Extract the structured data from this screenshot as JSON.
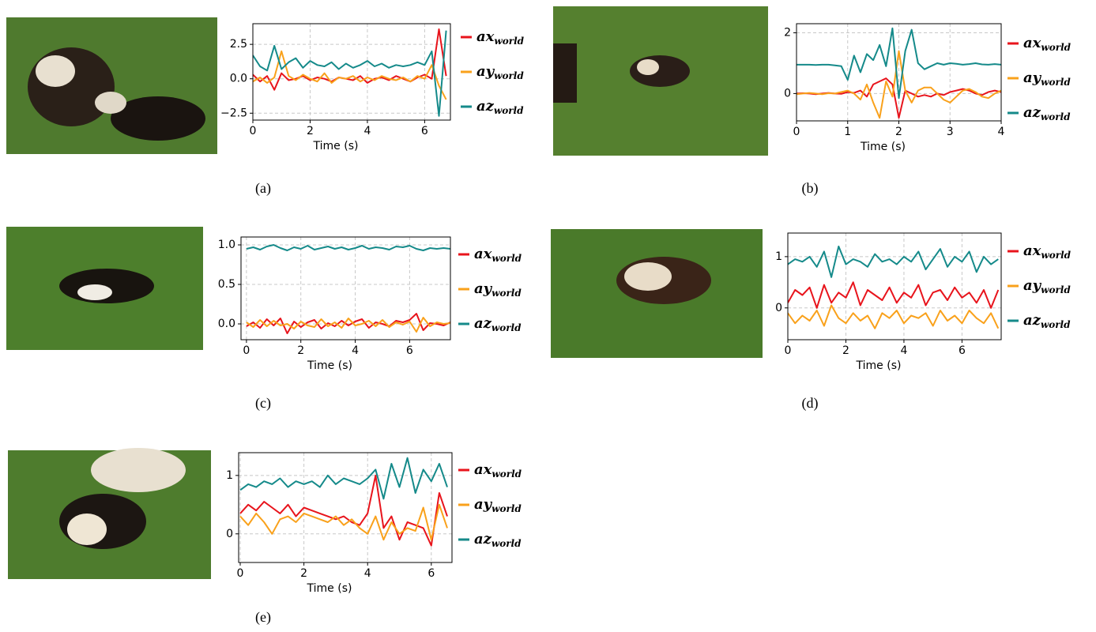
{
  "chart_data": [
    {
      "type": "line",
      "caption": "(a)",
      "xlabel": "Time (s)",
      "x": [
        0,
        0.25,
        0.5,
        0.75,
        1,
        1.25,
        1.5,
        1.75,
        2,
        2.25,
        2.5,
        2.75,
        3,
        3.25,
        3.5,
        3.75,
        4,
        4.25,
        4.5,
        4.75,
        5,
        5.25,
        5.5,
        5.75,
        6,
        6.25,
        6.5,
        6.75
      ],
      "xlim": [
        0,
        6.9
      ],
      "xticks": [
        0,
        2,
        4,
        6
      ],
      "ylim": [
        -3,
        4
      ],
      "yticks": [
        {
          "value": -2.5,
          "label": "−2.5"
        },
        {
          "value": 0,
          "label": "0.0"
        },
        2.5
      ],
      "grid": true,
      "series": [
        {
          "name": "ax",
          "name_sub": "world",
          "color": "#e8141c",
          "values": [
            0.3,
            -0.2,
            0.2,
            -0.8,
            0.4,
            -0.1,
            0.0,
            0.2,
            -0.1,
            0.1,
            0.0,
            -0.2,
            0.1,
            0.0,
            -0.1,
            0.2,
            -0.3,
            0.0,
            0.1,
            -0.1,
            0.2,
            0.0,
            -0.2,
            0.1,
            0.3,
            0.0,
            3.6,
            0.2
          ]
        },
        {
          "name": "ay",
          "name_sub": "world",
          "color": "#f9a11b",
          "values": [
            -0.2,
            0.1,
            -0.3,
            0.1,
            2.0,
            0.2,
            -0.1,
            0.3,
            0.0,
            -0.2,
            0.4,
            -0.3,
            0.1,
            0.0,
            0.2,
            -0.2,
            0.1,
            -0.1,
            0.2,
            0.0,
            -0.1,
            0.1,
            -0.2,
            0.2,
            0.0,
            1.0,
            -0.5,
            -1.5
          ]
        },
        {
          "name": "az",
          "name_sub": "world",
          "color": "#158a8a",
          "values": [
            1.7,
            0.9,
            0.6,
            2.4,
            0.7,
            1.2,
            1.5,
            0.8,
            1.3,
            1.0,
            0.9,
            1.2,
            0.7,
            1.1,
            0.8,
            1.0,
            1.3,
            0.9,
            1.1,
            0.8,
            1.0,
            0.9,
            1.0,
            1.2,
            1.0,
            2.0,
            -2.7,
            3.5
          ]
        }
      ]
    },
    {
      "type": "line",
      "caption": "(b)",
      "xlabel": "Time (s)",
      "x": [
        0,
        0.125,
        0.25,
        0.375,
        0.5,
        0.625,
        0.75,
        0.875,
        1,
        1.125,
        1.25,
        1.375,
        1.5,
        1.625,
        1.75,
        1.875,
        2,
        2.125,
        2.25,
        2.375,
        2.5,
        2.625,
        2.75,
        2.875,
        3,
        3.125,
        3.25,
        3.375,
        3.5,
        3.625,
        3.75,
        3.875,
        4
      ],
      "xlim": [
        0,
        4
      ],
      "xticks": [
        0,
        1,
        2,
        3,
        4
      ],
      "ylim": [
        -0.9,
        2.3
      ],
      "yticks": [
        0,
        2
      ],
      "grid": true,
      "series": [
        {
          "name": "ax",
          "name_sub": "world",
          "color": "#e8141c",
          "values": [
            0,
            0.01,
            0,
            -0.02,
            0,
            0.02,
            0,
            -0.01,
            0.05,
            0.02,
            0.1,
            -0.1,
            0.3,
            0.4,
            0.5,
            0.3,
            -0.8,
            0.1,
            0,
            -0.1,
            -0.05,
            -0.1,
            0,
            -0.05,
            0.05,
            0.1,
            0.15,
            0.1,
            0,
            -0.05,
            0.05,
            0.1,
            0.05
          ]
        },
        {
          "name": "ay",
          "name_sub": "world",
          "color": "#f9a11b",
          "values": [
            -0.02,
            0,
            0.02,
            0,
            -0.02,
            0.01,
            0,
            0.05,
            0.1,
            0,
            -0.2,
            0.3,
            -0.3,
            -0.8,
            0.4,
            -0.1,
            1.4,
            0.1,
            -0.3,
            0.1,
            0.2,
            0.2,
            0,
            -0.2,
            -0.3,
            -0.1,
            0.1,
            0.15,
            0.05,
            -0.1,
            -0.15,
            0,
            0.1
          ]
        },
        {
          "name": "az",
          "name_sub": "world",
          "color": "#158a8a",
          "values": [
            0.95,
            0.95,
            0.95,
            0.94,
            0.95,
            0.95,
            0.93,
            0.9,
            0.45,
            1.25,
            0.7,
            1.3,
            1.1,
            1.6,
            0.9,
            2.15,
            -0.15,
            1.4,
            2.1,
            1.0,
            0.8,
            0.9,
            1.0,
            0.95,
            1.0,
            0.98,
            0.95,
            0.97,
            1.0,
            0.96,
            0.95,
            0.97,
            0.95
          ]
        }
      ]
    },
    {
      "type": "line",
      "caption": "(c)",
      "xlabel": "Time (s)",
      "x": [
        0,
        0.25,
        0.5,
        0.75,
        1,
        1.25,
        1.5,
        1.75,
        2,
        2.25,
        2.5,
        2.75,
        3,
        3.25,
        3.5,
        3.75,
        4,
        4.25,
        4.5,
        4.75,
        5,
        5.25,
        5.5,
        5.75,
        6,
        6.25,
        6.5,
        6.75,
        7,
        7.25,
        7.5
      ],
      "xlim": [
        -0.2,
        7.5
      ],
      "xticks": [
        0,
        2,
        4,
        6
      ],
      "ylim": [
        -0.2,
        1.1
      ],
      "yticks": [
        {
          "value": 0,
          "label": "0.0"
        },
        0.5,
        {
          "value": 1,
          "label": "1.0"
        }
      ],
      "grid": true,
      "series": [
        {
          "name": "ax",
          "name_sub": "world",
          "color": "#e8141c",
          "values": [
            -0.03,
            0.02,
            -0.05,
            0.06,
            -0.02,
            0.07,
            -0.12,
            0.03,
            -0.04,
            0.02,
            0.05,
            -0.06,
            0.01,
            -0.03,
            0.04,
            -0.02,
            0.03,
            0.06,
            -0.05,
            0.02,
            0.0,
            -0.03,
            0.04,
            0.02,
            0.05,
            0.13,
            -0.08,
            0.01,
            0.0,
            -0.02,
            0.02
          ]
        },
        {
          "name": "ay",
          "name_sub": "world",
          "color": "#f9a11b",
          "values": [
            0.02,
            -0.04,
            0.05,
            -0.03,
            0.04,
            -0.02,
            0.0,
            -0.06,
            0.03,
            -0.02,
            -0.04,
            0.06,
            -0.03,
            0.02,
            -0.05,
            0.07,
            -0.02,
            0.0,
            0.04,
            -0.03,
            0.05,
            -0.04,
            0.02,
            -0.01,
            0.03,
            -0.1,
            0.08,
            -0.03,
            0.02,
            0.0,
            0.01
          ]
        },
        {
          "name": "az",
          "name_sub": "world",
          "color": "#158a8a",
          "values": [
            0.95,
            0.97,
            0.94,
            0.98,
            1.0,
            0.96,
            0.93,
            0.97,
            0.95,
            0.99,
            0.94,
            0.96,
            0.98,
            0.95,
            0.97,
            0.94,
            0.96,
            0.99,
            0.95,
            0.97,
            0.96,
            0.94,
            0.98,
            0.97,
            0.99,
            0.95,
            0.93,
            0.96,
            0.95,
            0.96,
            0.95
          ]
        }
      ]
    },
    {
      "type": "line",
      "caption": "(d)",
      "xlabel": "Time (s)",
      "x": [
        0,
        0.25,
        0.5,
        0.75,
        1,
        1.25,
        1.5,
        1.75,
        2,
        2.25,
        2.5,
        2.75,
        3,
        3.25,
        3.5,
        3.75,
        4,
        4.25,
        4.5,
        4.75,
        5,
        5.25,
        5.5,
        5.75,
        6,
        6.25,
        6.5,
        6.75,
        7,
        7.25
      ],
      "xlim": [
        0,
        7.35
      ],
      "xticks": [
        0,
        2,
        4,
        6
      ],
      "ylim": [
        -0.62,
        1.46
      ],
      "yticks": [
        0,
        1
      ],
      "grid": true,
      "series": [
        {
          "name": "ax",
          "name_sub": "world",
          "color": "#e8141c",
          "values": [
            0.1,
            0.35,
            0.25,
            0.4,
            0.0,
            0.45,
            0.1,
            0.3,
            0.2,
            0.5,
            0.05,
            0.35,
            0.25,
            0.15,
            0.4,
            0.1,
            0.3,
            0.2,
            0.45,
            0.05,
            0.3,
            0.35,
            0.15,
            0.4,
            0.2,
            0.3,
            0.1,
            0.35,
            0.0,
            0.35
          ]
        },
        {
          "name": "ay",
          "name_sub": "world",
          "color": "#f9a11b",
          "values": [
            -0.1,
            -0.3,
            -0.15,
            -0.25,
            -0.05,
            -0.35,
            0.05,
            -0.2,
            -0.3,
            -0.1,
            -0.25,
            -0.15,
            -0.4,
            -0.1,
            -0.2,
            -0.05,
            -0.3,
            -0.15,
            -0.2,
            -0.1,
            -0.35,
            -0.05,
            -0.25,
            -0.15,
            -0.3,
            -0.05,
            -0.2,
            -0.3,
            -0.1,
            -0.4
          ]
        },
        {
          "name": "az",
          "name_sub": "world",
          "color": "#158a8a",
          "values": [
            0.85,
            0.95,
            0.9,
            1.0,
            0.8,
            1.1,
            0.6,
            1.2,
            0.85,
            0.95,
            0.9,
            0.8,
            1.05,
            0.9,
            0.95,
            0.85,
            1.0,
            0.9,
            1.1,
            0.75,
            0.95,
            1.15,
            0.8,
            1.0,
            0.9,
            1.1,
            0.7,
            1.0,
            0.85,
            0.95
          ]
        }
      ]
    },
    {
      "type": "line",
      "caption": "(e)",
      "xlabel": "Time (s)",
      "x": [
        0,
        0.25,
        0.5,
        0.75,
        1,
        1.25,
        1.5,
        1.75,
        2,
        2.25,
        2.5,
        2.75,
        3,
        3.25,
        3.5,
        3.75,
        4,
        4.25,
        4.5,
        4.75,
        5,
        5.25,
        5.5,
        5.75,
        6,
        6.25,
        6.5
      ],
      "xlim": [
        -0.05,
        6.65
      ],
      "xticks": [
        0,
        2,
        4,
        6
      ],
      "ylim": [
        -0.49,
        1.39
      ],
      "yticks": [
        0,
        1
      ],
      "grid": true,
      "series": [
        {
          "name": "ax",
          "name_sub": "world",
          "color": "#e8141c",
          "values": [
            0.35,
            0.5,
            0.4,
            0.55,
            0.45,
            0.35,
            0.5,
            0.3,
            0.45,
            0.4,
            0.35,
            0.3,
            0.25,
            0.3,
            0.2,
            0.15,
            0.35,
            1.0,
            0.1,
            0.3,
            -0.1,
            0.2,
            0.15,
            0.1,
            -0.2,
            0.7,
            0.3
          ]
        },
        {
          "name": "ay",
          "name_sub": "world",
          "color": "#f9a11b",
          "values": [
            0.3,
            0.15,
            0.35,
            0.2,
            0.0,
            0.25,
            0.3,
            0.2,
            0.35,
            0.3,
            0.25,
            0.2,
            0.3,
            0.15,
            0.25,
            0.1,
            0.0,
            0.3,
            -0.1,
            0.2,
            0.0,
            0.1,
            0.05,
            0.45,
            -0.1,
            0.5,
            0.1
          ]
        },
        {
          "name": "az",
          "name_sub": "world",
          "color": "#158a8a",
          "values": [
            0.75,
            0.85,
            0.8,
            0.9,
            0.85,
            0.95,
            0.8,
            0.9,
            0.85,
            0.9,
            0.8,
            1.0,
            0.85,
            0.95,
            0.9,
            0.85,
            0.95,
            1.1,
            0.6,
            1.2,
            0.8,
            1.3,
            0.7,
            1.1,
            0.9,
            1.2,
            0.8
          ]
        }
      ]
    }
  ]
}
